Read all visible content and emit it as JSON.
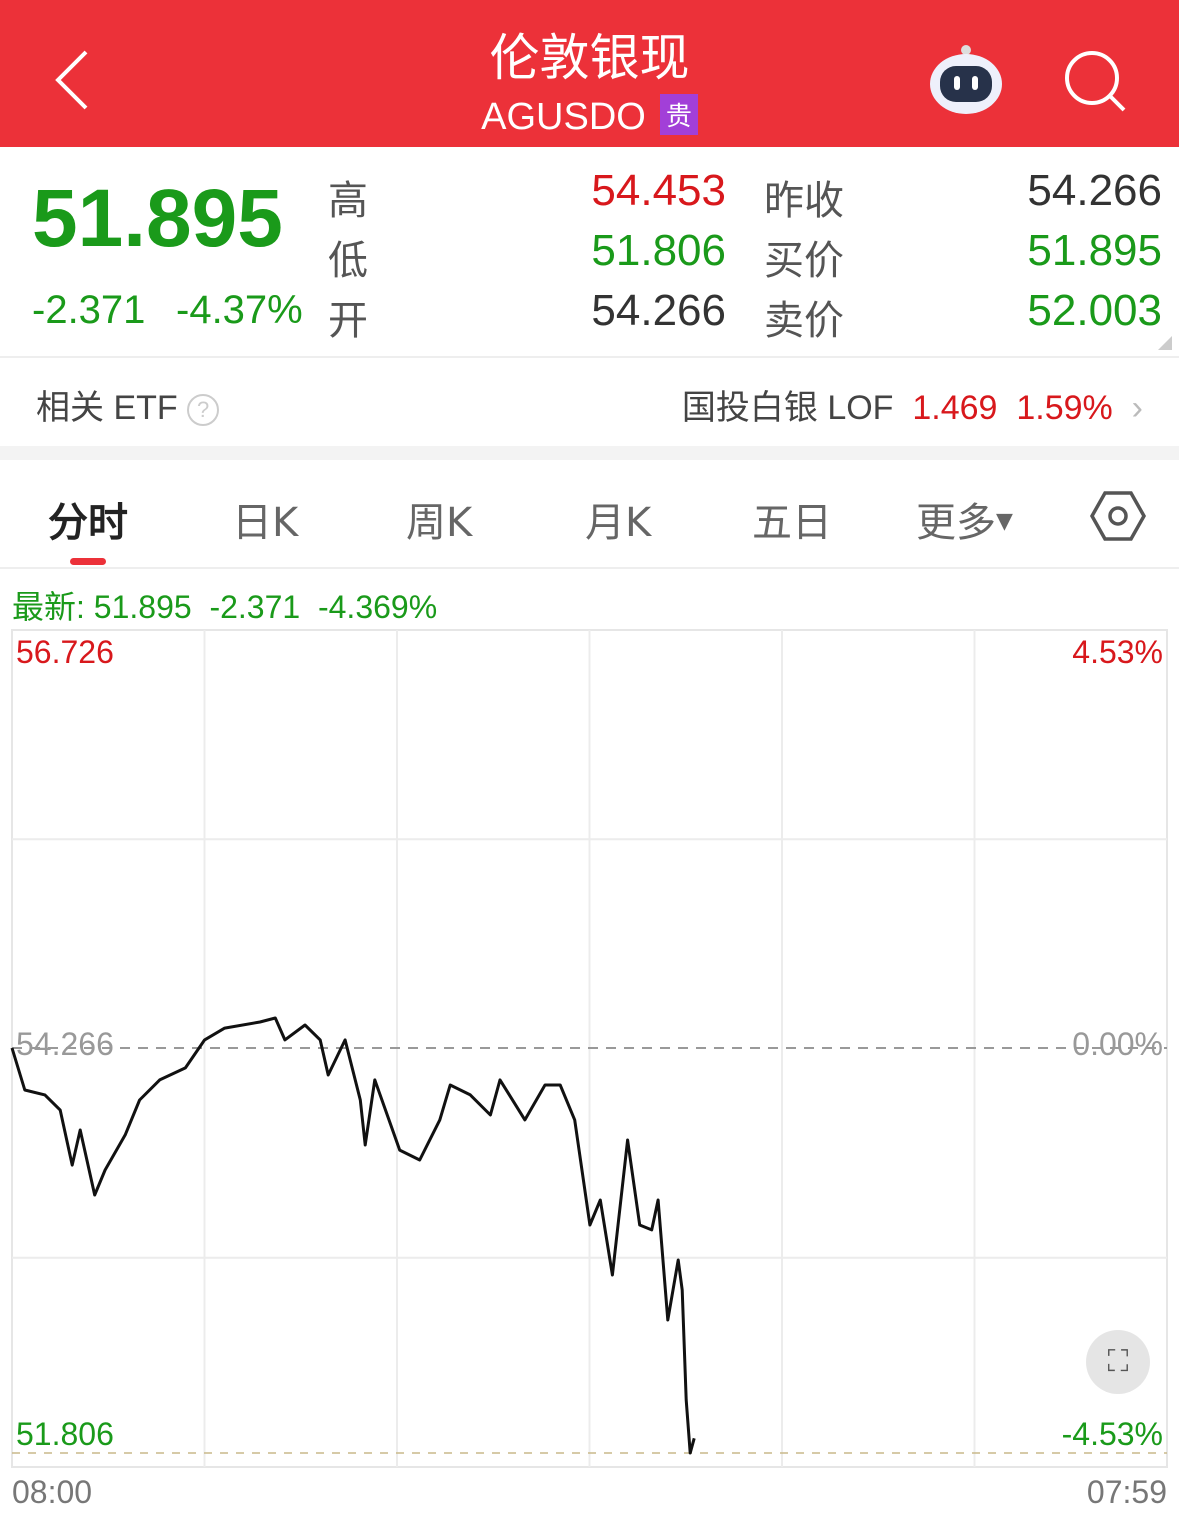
{
  "header": {
    "title": "伦敦银现",
    "code": "AGUSDO",
    "badge": "贵",
    "icons": [
      "back-icon",
      "robot-assistant-icon",
      "search-icon"
    ]
  },
  "quote": {
    "price": "51.895",
    "change": "-2.371",
    "change_pct": "-4.37%",
    "fields": [
      {
        "label": "高",
        "value": "54.453",
        "color": "red"
      },
      {
        "label": "低",
        "value": "51.806",
        "color": "green"
      },
      {
        "label": "开",
        "value": "54.266",
        "color": "dark"
      },
      {
        "label": "昨收",
        "value": "54.266",
        "color": "dark"
      },
      {
        "label": "买价",
        "value": "51.895",
        "color": "green"
      },
      {
        "label": "卖价",
        "value": "52.003",
        "color": "green"
      }
    ]
  },
  "etf": {
    "label": "相关 ETF",
    "name": "国投白银 LOF",
    "price": "1.469",
    "pct": "1.59%"
  },
  "tabs": [
    "分时",
    "日K",
    "周K",
    "月K",
    "五日",
    "更多"
  ],
  "latest": {
    "label": "最新:",
    "price": "51.895",
    "change": "-2.371",
    "pct": "-4.369%"
  },
  "colors": {
    "header": "#ec3139",
    "up": "#d8181c",
    "down": "#1a9a1a",
    "line": "#111111"
  },
  "chart_data": {
    "type": "line",
    "ylim": [
      51.806,
      56.726
    ],
    "y_ticks_left": [
      "56.726",
      "54.266",
      "51.806"
    ],
    "y_ticks_right": [
      "4.53%",
      "0.00%",
      "-4.53%"
    ],
    "x_ticks": [
      "08:00",
      "07:59"
    ],
    "x_range": [
      "08:00",
      "07:59"
    ],
    "reference": 54.266,
    "grid": true,
    "points": [
      [
        "08:00",
        54.266
      ],
      [
        "08:16",
        54.011
      ],
      [
        "08:41",
        53.981
      ],
      [
        "09:00",
        53.889
      ],
      [
        "09:15",
        53.555
      ],
      [
        "09:25",
        53.768
      ],
      [
        "09:43",
        53.373
      ],
      [
        "09:56",
        53.525
      ],
      [
        "10:21",
        53.738
      ],
      [
        "10:39",
        53.95
      ],
      [
        "11:04",
        54.072
      ],
      [
        "11:36",
        54.145
      ],
      [
        "12:00",
        54.315
      ],
      [
        "12:25",
        54.387
      ],
      [
        "13:09",
        54.424
      ],
      [
        "13:28",
        54.448
      ],
      [
        "13:40",
        54.315
      ],
      [
        "14:05",
        54.406
      ],
      [
        "14:24",
        54.315
      ],
      [
        "14:34",
        54.102
      ],
      [
        "14:55",
        54.315
      ],
      [
        "15:14",
        53.95
      ],
      [
        "15:20",
        53.677
      ],
      [
        "15:32",
        54.072
      ],
      [
        "16:03",
        53.646
      ],
      [
        "16:28",
        53.586
      ],
      [
        "16:53",
        53.829
      ],
      [
        "17:06",
        54.041
      ],
      [
        "17:31",
        53.981
      ],
      [
        "17:56",
        53.859
      ],
      [
        "18:08",
        54.072
      ],
      [
        "18:39",
        53.829
      ],
      [
        "19:04",
        54.041
      ],
      [
        "19:23",
        54.041
      ],
      [
        "19:41",
        53.829
      ],
      [
        "20:00",
        53.191
      ],
      [
        "20:13",
        53.343
      ],
      [
        "20:28",
        52.887
      ],
      [
        "20:47",
        53.707
      ],
      [
        "21:02",
        53.191
      ],
      [
        "21:17",
        53.161
      ],
      [
        "21:25",
        53.343
      ],
      [
        "21:37",
        52.614
      ],
      [
        "21:50",
        52.978
      ],
      [
        "21:55",
        52.796
      ],
      [
        "22:00",
        52.128
      ],
      [
        "22:05",
        51.806
      ],
      [
        "22:10",
        51.895
      ]
    ]
  }
}
